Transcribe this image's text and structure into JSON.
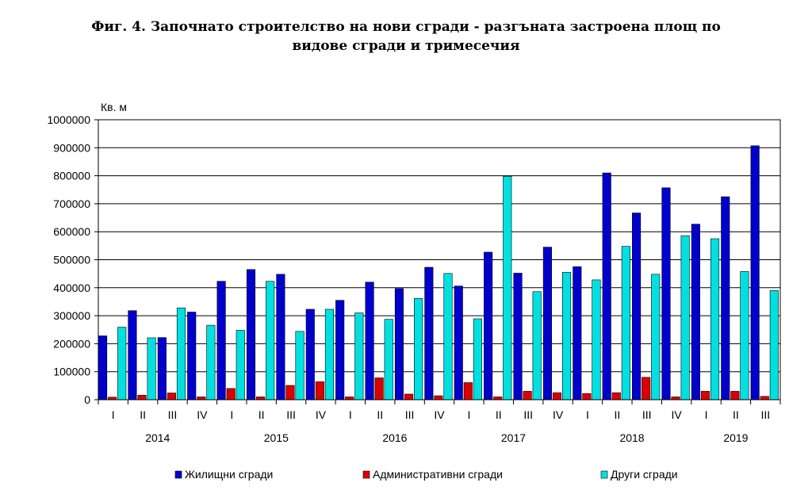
{
  "chart_data": {
    "type": "bar",
    "title": "Фиг. 4. Започнато строителство на нови сгради - разгъната застроена площ по",
    "title_line2": "видове сгради и тримесечия",
    "ylabel": "Кв. м",
    "ylim": [
      0,
      1000000
    ],
    "yticks": [
      0,
      100000,
      200000,
      300000,
      400000,
      500000,
      600000,
      700000,
      800000,
      900000,
      1000000
    ],
    "grid": true,
    "legend_position": "bottom",
    "quarters": [
      "I",
      "II",
      "III",
      "IV",
      "I",
      "II",
      "III",
      "IV",
      "I",
      "II",
      "III",
      "IV",
      "I",
      "II",
      "III",
      "IV",
      "I",
      "II",
      "III",
      "IV",
      "I",
      "II",
      "III"
    ],
    "years": [
      {
        "label": "2014",
        "start": 0,
        "count": 4
      },
      {
        "label": "2015",
        "start": 4,
        "count": 4
      },
      {
        "label": "2016",
        "start": 8,
        "count": 4
      },
      {
        "label": "2017",
        "start": 12,
        "count": 4
      },
      {
        "label": "2018",
        "start": 16,
        "count": 4
      },
      {
        "label": "2019",
        "start": 20,
        "count": 3
      }
    ],
    "series": [
      {
        "name": "Жилищни сгради",
        "color": "#0000cc",
        "values": [
          228000,
          318000,
          222000,
          313000,
          423000,
          465000,
          448000,
          323000,
          355000,
          420000,
          397000,
          473000,
          406000,
          527000,
          452000,
          545000,
          475000,
          810000,
          667000,
          757000,
          627000,
          725000,
          907000
        ]
      },
      {
        "name": "Административни сгради",
        "color": "#dd0000",
        "values": [
          9000,
          16000,
          24000,
          10000,
          40000,
          10000,
          51000,
          64000,
          10000,
          78000,
          20000,
          14000,
          61000,
          10000,
          30000,
          25000,
          22000,
          25000,
          80000,
          10000,
          30000,
          30000,
          12000
        ]
      },
      {
        "name": "Други сгради",
        "color": "#00e0e0",
        "values": [
          259000,
          221000,
          328000,
          266000,
          248000,
          423000,
          244000,
          323000,
          310000,
          287000,
          362000,
          451000,
          289000,
          798000,
          386000,
          455000,
          428000,
          548000,
          448000,
          586000,
          575000,
          458000,
          390000
        ]
      }
    ]
  }
}
